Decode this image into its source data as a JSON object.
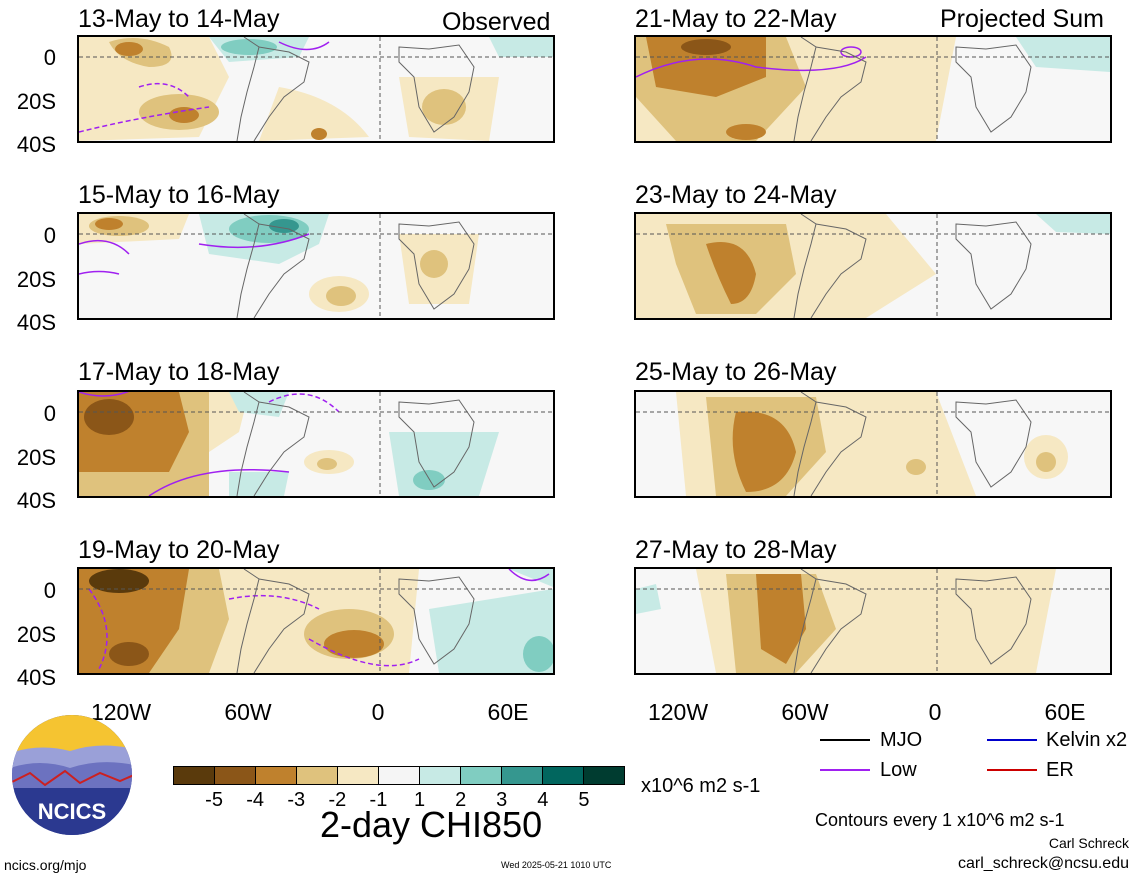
{
  "panels_left_tag": "Observed",
  "panels_right_tag": "Projected Sum",
  "panels": [
    {
      "title": "13-May to 14-May"
    },
    {
      "title": "15-May to 16-May"
    },
    {
      "title": "17-May to 18-May"
    },
    {
      "title": "19-May to 20-May"
    },
    {
      "title": "21-May to 22-May"
    },
    {
      "title": "23-May to 24-May"
    },
    {
      "title": "25-May to 26-May"
    },
    {
      "title": "27-May to 28-May"
    }
  ],
  "y_labels": [
    "0",
    "20S",
    "40S"
  ],
  "x_labels": [
    "120W",
    "60W",
    "0",
    "60E"
  ],
  "colorbar": {
    "colors": [
      "#5a3a0c",
      "#8b5618",
      "#bf812d",
      "#dfc27d",
      "#f6e8c3",
      "#f5f5f5",
      "#c7eae5",
      "#80cdc1",
      "#35978f",
      "#01665e",
      "#003c30"
    ],
    "labels": [
      "-5",
      "-4",
      "-3",
      "-2",
      "-1",
      "1",
      "2",
      "3",
      "4",
      "5"
    ],
    "units": "x10^6 m2 s-1"
  },
  "title": "2-day CHI850",
  "legend": [
    {
      "label": "MJO",
      "color": "#000000"
    },
    {
      "label": "Kelvin x2",
      "color": "#0000cc"
    },
    {
      "label": "Low",
      "color": "#a020f0"
    },
    {
      "label": "ER",
      "color": "#cc0000"
    }
  ],
  "contour_note": "Contours every 1 x10^6 m2 s-1",
  "author": "Carl Schreck",
  "email": "carl_schreck@ncsu.edu",
  "site": "ncics.org/mjo",
  "timestamp": "Wed 2025-05-21 1010 UTC",
  "logo_text": "NCICS"
}
